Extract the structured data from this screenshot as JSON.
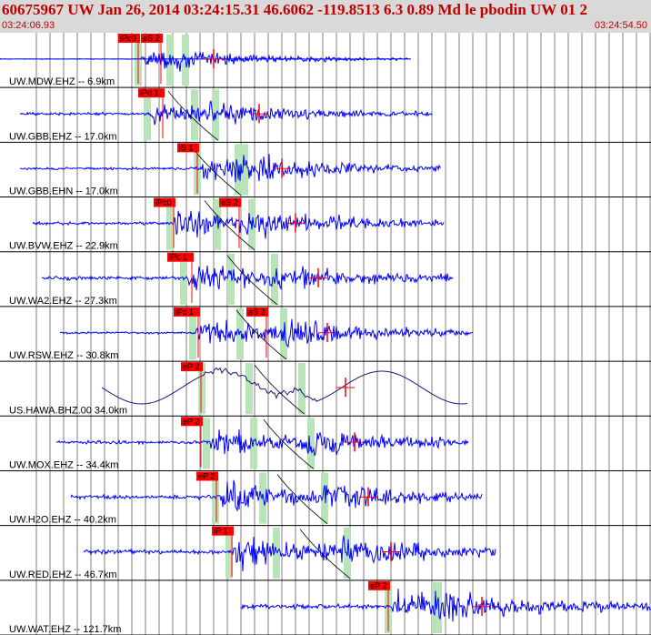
{
  "header": {
    "title": "60675967 UW Jan 26, 2014 03:24:15.31   46.6062 -119.8513  6.3 0.89 Md le pbodin UW 01   2",
    "start_time": "03:24:06.93",
    "end_time": "03:24:54.50"
  },
  "colors": {
    "trace": "#0000ff",
    "pick": "#ff0000",
    "window": "#b9e3b9",
    "grid": "#000000",
    "header_bg": "#d9d9d9",
    "header_text": "#c00000"
  },
  "chart_data": {
    "type": "line",
    "title": "60675967 UW Jan 26, 2014 03:24:15.31   46.6062 -119.8513  6.3 0.89 Md le pbodin UW 01   2",
    "xlabel": "",
    "ylabel": "",
    "xlim": [
      "03:24:06.93",
      "03:24:54.50"
    ],
    "grid": true,
    "grid_spacing_s": 1,
    "series": [
      {
        "name": "UW.MDW.EHZ -- 6.9km",
        "picks": [
          "iPc0",
          "eS 2"
        ],
        "style": "short"
      },
      {
        "name": "UW.GBB.EHZ -- 17.0km",
        "picks": [
          "iPd 1"
        ],
        "style": "normal"
      },
      {
        "name": "UW.GBB.EHN -- 17.0km",
        "picks": [
          "iS 1"
        ],
        "style": "normal"
      },
      {
        "name": "UW.BVW.EHZ -- 22.9km",
        "picks": [
          "iPc0",
          "eS 2"
        ],
        "style": "normal"
      },
      {
        "name": "UW.WA2.EHZ -- 27.3km",
        "picks": [
          "iPc 1"
        ],
        "style": "normal"
      },
      {
        "name": "UW.RSW.EHZ -- 30.8km",
        "picks": [
          "iPc 1",
          "eS 2"
        ],
        "style": "normal"
      },
      {
        "name": "US.HAWA.BHZ.00 34.0km",
        "picks": [
          "eP 2"
        ],
        "style": "longperiod"
      },
      {
        "name": "UW.MOX.EHZ -- 34.4km",
        "picks": [
          "eP 2"
        ],
        "style": "normal"
      },
      {
        "name": "UW.H2O.EHZ -- 40.2km",
        "picks": [
          "eP 2"
        ],
        "style": "normal"
      },
      {
        "name": "UW.RED.EHZ -- 46.7km",
        "picks": [
          "iP 1"
        ],
        "style": "normal"
      },
      {
        "name": "UW.WAT.EHZ -- 121.7km",
        "picks": [
          "eP 2"
        ],
        "style": "late"
      }
    ]
  }
}
